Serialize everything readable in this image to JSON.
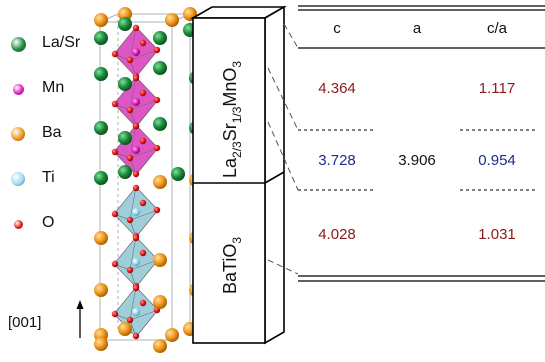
{
  "legend": [
    {
      "label": "La/Sr",
      "color": "#1a8a3a",
      "icon": "green-sphere"
    },
    {
      "label": "Mn",
      "color": "#e020c0",
      "icon": "magenta-sphere"
    },
    {
      "label": "Ba",
      "color": "#f0961a",
      "icon": "orange-sphere"
    },
    {
      "label": "Ti",
      "color": "#9fdcf0",
      "icon": "light-blue-sphere"
    },
    {
      "label": "O",
      "color": "#e01a1a",
      "icon": "red-sphere"
    }
  ],
  "direction_label": "[001]",
  "layers": {
    "top": {
      "formula_base": "La",
      "sub1": "2/3",
      "mid": "Sr",
      "sub2": "1/3",
      "tail": "MnO",
      "sub3": "3"
    },
    "bottom": {
      "formula_base": "BaTiO",
      "sub": "3"
    }
  },
  "table": {
    "headers": [
      "c",
      "a",
      "c/a"
    ],
    "rows": [
      {
        "c": "4.364",
        "a": "",
        "ca": "1.117",
        "color": "#8b1a1a"
      },
      {
        "c": "3.728",
        "a": "3.906",
        "ca": "0.954",
        "color": "#1f2a8c"
      },
      {
        "c": "4.028",
        "a": "",
        "ca": "1.031",
        "color": "#8b1a1a"
      }
    ]
  },
  "colors": {
    "mn_octahedron": "#d838b8",
    "ti_octahedron": "#8fc4d4",
    "cell_outline": "#b0b0b0"
  }
}
